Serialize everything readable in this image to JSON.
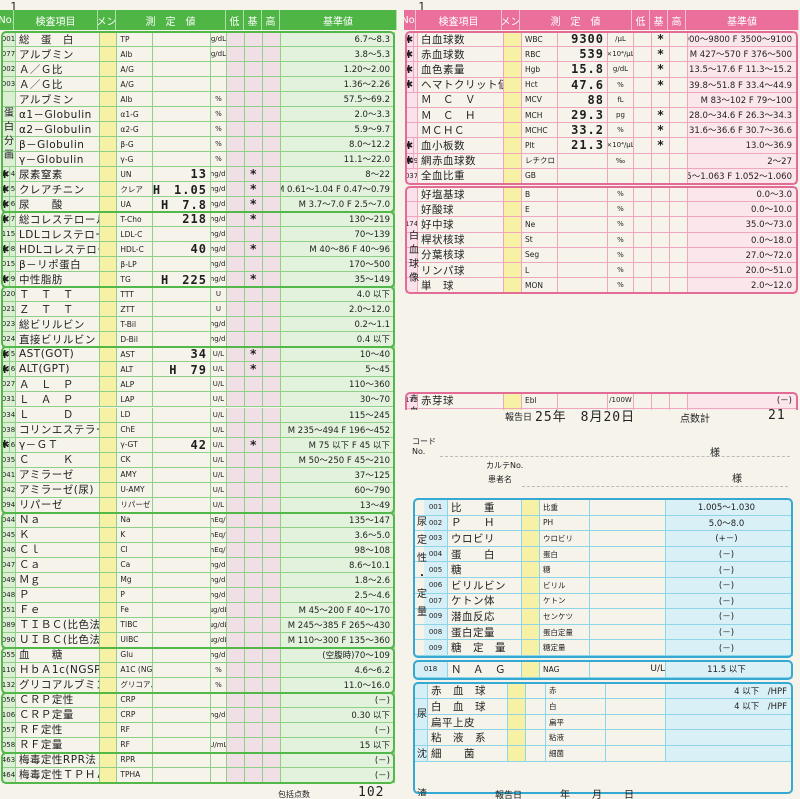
{
  "corner_marks": {
    "left": "1",
    "right": "1"
  },
  "left_form": {
    "header": [
      "No.",
      "検査項目",
      "コメント",
      "測　定　値",
      "低",
      "基",
      "高",
      "基準値"
    ],
    "rows": [
      {
        "no": "001",
        "item": "総　蛋　白",
        "abbr": "TP",
        "val": "",
        "flag": "",
        "unit": "g/dL",
        "ref": "6.7～8.3"
      },
      {
        "no": "077",
        "item": "アルブミン",
        "abbr": "Alb",
        "val": "",
        "flag": "",
        "unit": "g/dL",
        "ref": "3.8～5.3"
      },
      {
        "no": "002",
        "item": "Ａ／Ｇ比",
        "abbr": "A/G",
        "val": "",
        "flag": "",
        "unit": "",
        "ref": "1.20～2.00"
      },
      {
        "no": "003",
        "item": "Ａ／Ｇ比",
        "abbr": "A/G",
        "val": "",
        "flag": "",
        "unit": "",
        "ref": "1.36～2.26"
      },
      {
        "no": "",
        "item": "アルブミン",
        "abbr": "Alb",
        "val": "",
        "flag": "",
        "unit": "%",
        "ref": "57.5～69.2"
      },
      {
        "no": "",
        "item": "α1－Globulin",
        "abbr": "α1-G",
        "val": "",
        "flag": "",
        "unit": "%",
        "ref": "2.0～3.3"
      },
      {
        "no": "",
        "item": "α2－Globulin",
        "abbr": "α2-G",
        "val": "",
        "flag": "",
        "unit": "%",
        "ref": "5.9～9.7"
      },
      {
        "no": "",
        "item": "β－Globulin",
        "abbr": "β-G",
        "val": "",
        "flag": "",
        "unit": "%",
        "ref": "8.0～12.2"
      },
      {
        "no": "",
        "item": "γ－Globulin",
        "abbr": "γ-G",
        "val": "",
        "flag": "",
        "unit": "%",
        "ref": "11.1～22.0"
      },
      {
        "no": "004",
        "item": "尿素窒素",
        "abbr": "UN",
        "val": "13",
        "flag": "*",
        "unit": "mg/dL",
        "ref": "8～22",
        "star": "✱"
      },
      {
        "no": "005",
        "item": "クレアチニン",
        "abbr": "クレア",
        "val": "H　1.05",
        "flag": "*",
        "unit": "mg/dL",
        "ref": "M 0.61～1.04 F 0.47～0.79",
        "star": "✱"
      },
      {
        "no": "006",
        "item": "尿　　酸",
        "abbr": "UA",
        "val": "H　7.8",
        "flag": "*",
        "unit": "mg/dL",
        "ref": "M 3.7～7.0 F 2.5～7.0",
        "star": "✱"
      },
      {
        "no": "007",
        "item": "総コレステロール",
        "abbr": "T-Cho",
        "val": "218",
        "flag": "*",
        "unit": "mg/dL",
        "ref": "130～219",
        "star": "✱"
      },
      {
        "no": "115",
        "item": "LDLコレステロール",
        "abbr": "LDL-C",
        "val": "",
        "flag": "",
        "unit": "mg/dL",
        "ref": "70～139"
      },
      {
        "no": "008",
        "item": "HDLコレステロール",
        "abbr": "HDL-C",
        "val": "40",
        "flag": "*",
        "unit": "mg/dL",
        "ref": "M 40～86 F 40～96",
        "star": "✱"
      },
      {
        "no": "015",
        "item": "β－リポ蛋白",
        "abbr": "β-LP",
        "val": "",
        "flag": "",
        "unit": "mg/dL",
        "ref": "170～500"
      },
      {
        "no": "009",
        "item": "中性脂肪",
        "abbr": "TG",
        "val": "H　225",
        "flag": "*",
        "unit": "mg/dL",
        "ref": "35～149",
        "star": "✱"
      },
      {
        "no": "020",
        "item": "Ｔ　Ｔ　Ｔ",
        "abbr": "TTT",
        "val": "",
        "flag": "",
        "unit": "U",
        "ref": "4.0 以下"
      },
      {
        "no": "021",
        "item": "Ｚ　Ｔ　Ｔ",
        "abbr": "ZTT",
        "val": "",
        "flag": "",
        "unit": "U",
        "ref": "2.0～12.0"
      },
      {
        "no": "023",
        "item": "総ビリルビン",
        "abbr": "T-Bil",
        "val": "",
        "flag": "",
        "unit": "mg/dL",
        "ref": "0.2～1.1"
      },
      {
        "no": "024",
        "item": "直接ビリルビン",
        "abbr": "D-Bil",
        "val": "",
        "flag": "",
        "unit": "mg/dL",
        "ref": "0.4 以下"
      },
      {
        "no": "025",
        "item": "AST(GOT)",
        "abbr": "AST",
        "val": "34",
        "flag": "*",
        "unit": "U/L",
        "ref": "10～40",
        "star": "✱"
      },
      {
        "no": "026",
        "item": "ALT(GPT)",
        "abbr": "ALT",
        "val": "H　79",
        "flag": "*",
        "unit": "U/L",
        "ref": "5～45",
        "star": "✱"
      },
      {
        "no": "027",
        "item": "Ａ　Ｌ　Ｐ",
        "abbr": "ALP",
        "val": "",
        "flag": "",
        "unit": "U/L",
        "ref": "110～360"
      },
      {
        "no": "031",
        "item": "Ｌ　Ａ　Ｐ",
        "abbr": "LAP",
        "val": "",
        "flag": "",
        "unit": "U/L",
        "ref": "30～70"
      },
      {
        "no": "034",
        "item": "Ｌ　　　Ｄ",
        "abbr": "LD",
        "val": "",
        "flag": "",
        "unit": "U/L",
        "ref": "115～245"
      },
      {
        "no": "038",
        "item": "コリンエステラーゼ",
        "abbr": "ChE",
        "val": "",
        "flag": "",
        "unit": "U/L",
        "ref": "M 235～494 F 196～452"
      },
      {
        "no": "036",
        "item": "γ－ＧＴ",
        "abbr": "γ-GT",
        "val": "42",
        "flag": "*",
        "unit": "U/L",
        "ref": "M 75 以下 F 45 以下",
        "star": "✱"
      },
      {
        "no": "035",
        "item": "Ｃ　　　Ｋ",
        "abbr": "CK",
        "val": "",
        "flag": "",
        "unit": "U/L",
        "ref": "M 50～250 F 45～210"
      },
      {
        "no": "041",
        "item": "アミラーゼ",
        "abbr": "AMY",
        "val": "",
        "flag": "",
        "unit": "U/L",
        "ref": "37～125"
      },
      {
        "no": "042",
        "item": "アミラーゼ(尿)",
        "abbr": "U-AMY",
        "val": "",
        "flag": "",
        "unit": "U/L",
        "ref": "60～790"
      },
      {
        "no": "094",
        "item": "リパーゼ",
        "abbr": "リパーゼ",
        "val": "",
        "flag": "",
        "unit": "U/L",
        "ref": "13～49"
      },
      {
        "no": "044",
        "item": "Ｎａ",
        "abbr": "Na",
        "val": "",
        "flag": "",
        "unit": "mEq/L",
        "ref": "135～147"
      },
      {
        "no": "045",
        "item": "Ｋ",
        "abbr": "K",
        "val": "",
        "flag": "",
        "unit": "mEq/L",
        "ref": "3.6～5.0"
      },
      {
        "no": "046",
        "item": "Ｃｌ",
        "abbr": "Cl",
        "val": "",
        "flag": "",
        "unit": "mEq/L",
        "ref": "98～108"
      },
      {
        "no": "047",
        "item": "Ｃａ",
        "abbr": "Ca",
        "val": "",
        "flag": "",
        "unit": "mg/dL",
        "ref": "8.6～10.1"
      },
      {
        "no": "049",
        "item": "Ｍｇ",
        "abbr": "Mg",
        "val": "",
        "flag": "",
        "unit": "mg/dL",
        "ref": "1.8～2.6"
      },
      {
        "no": "048",
        "item": "Ｐ",
        "abbr": "P",
        "val": "",
        "flag": "",
        "unit": "mg/dL",
        "ref": "2.5～4.6"
      },
      {
        "no": "051",
        "item": "Ｆｅ",
        "abbr": "Fe",
        "val": "",
        "flag": "",
        "unit": "μg/dL",
        "ref": "M 45～200 F 40～170"
      },
      {
        "no": "089",
        "item": "ＴＩＢＣ(比色法)",
        "abbr": "TIBC",
        "val": "",
        "flag": "",
        "unit": "μg/dL",
        "ref": "M 245～385 F 265～430"
      },
      {
        "no": "090",
        "item": "ＵＩＢＣ(比色法)",
        "abbr": "UIBC",
        "val": "",
        "flag": "",
        "unit": "μg/dL",
        "ref": "M 110～300 F 135～360"
      },
      {
        "no": "055",
        "item": "血　　糖",
        "abbr": "Glu",
        "val": "",
        "flag": "",
        "unit": "mg/dL",
        "ref": "(空腹時)70～109"
      },
      {
        "no": "110",
        "item": "ＨｂＡ1c(NGSP)",
        "abbr": "A1C (NGSP)",
        "val": "",
        "flag": "",
        "unit": "%",
        "ref": "4.6～6.2"
      },
      {
        "no": "132",
        "item": "グリコアルブミン",
        "abbr": "グリコアルブミン",
        "val": "",
        "flag": "",
        "unit": "%",
        "ref": "11.0～16.0"
      },
      {
        "no": "056",
        "item": "ＣＲＰ定性",
        "abbr": "CRP",
        "val": "",
        "flag": "",
        "unit": "",
        "ref": "(－)"
      },
      {
        "no": "106",
        "item": "ＣＲＰ定量",
        "abbr": "CRP",
        "val": "",
        "flag": "",
        "unit": "mg/dL",
        "ref": "0.30 以下"
      },
      {
        "no": "057",
        "item": "ＲＦ定性",
        "abbr": "RF",
        "val": "",
        "flag": "",
        "unit": "",
        "ref": "(－)"
      },
      {
        "no": "058",
        "item": "ＲＦ定量",
        "abbr": "RF",
        "val": "",
        "flag": "",
        "unit": "U/mL",
        "ref": "15 以下"
      },
      {
        "no": "463",
        "item": "梅毒定性RPR法",
        "abbr": "RPR",
        "val": "",
        "flag": "",
        "unit": "",
        "ref": "(－)"
      },
      {
        "no": "464",
        "item": "梅毒定性ＴＰＨＡ",
        "abbr": "TPHA",
        "val": "",
        "flag": "",
        "unit": "",
        "ref": "(－)"
      }
    ],
    "side_text": [
      "蛋",
      "白",
      "分",
      "画"
    ],
    "footer": {
      "label": "包括点数",
      "value": "102"
    }
  },
  "right_form": {
    "header": [
      "No.",
      "検査項目",
      "コメント",
      "測　定　値",
      "低",
      "基",
      "高",
      "基準値"
    ],
    "rows": [
      {
        "no": "",
        "item": "白血球数",
        "abbr": "WBC",
        "val": "9300",
        "unit": "/μL",
        "flag": "*",
        "ref": "M 3900～9800 F 3500～9100",
        "star": "✱"
      },
      {
        "no": "",
        "item": "赤血球数",
        "abbr": "RBC",
        "val": "539",
        "unit": "×10⁴/μL",
        "flag": "*",
        "ref": "M 427～570 F 376～500",
        "star": "✱"
      },
      {
        "no": "",
        "item": "血色素量",
        "abbr": "Hgb",
        "val": "15.8",
        "unit": "g/dL",
        "flag": "*",
        "ref": "M 13.5～17.6 F 11.3～15.2",
        "star": "✱"
      },
      {
        "no": "",
        "item": "ヘマトクリット値",
        "abbr": "Hct",
        "val": "47.6",
        "unit": "%",
        "flag": "*",
        "ref": "M 39.8～51.8 F 33.4～44.9",
        "star": "✱"
      },
      {
        "no": "",
        "item": "Ｍ　Ｃ　Ｖ",
        "abbr": "MCV",
        "val": "88",
        "unit": "fL",
        "flag": "",
        "ref": "M 83～102 F 79～100"
      },
      {
        "no": "",
        "item": "Ｍ　Ｃ　Ｈ",
        "abbr": "MCH",
        "val": "29.3",
        "unit": "pg",
        "flag": "*",
        "ref": "M 28.0～34.6 F 26.3～34.3"
      },
      {
        "no": "",
        "item": "ＭＣＨＣ",
        "abbr": "MCHC",
        "val": "33.2",
        "unit": "%",
        "flag": "*",
        "ref": "M 31.6～36.6 F 30.7～36.6"
      },
      {
        "no": "",
        "item": "血小板数",
        "abbr": "Plt",
        "val": "21.3",
        "unit": "×10⁴/μL",
        "flag": "*",
        "ref": "13.0～36.9",
        "star": "✱"
      },
      {
        "no": "009",
        "item": "網赤血球数",
        "abbr": "レチクロ",
        "val": "",
        "unit": "‰",
        "flag": "",
        "ref": "2～27",
        "star": "✱"
      },
      {
        "no": "037",
        "item": "全血比重",
        "abbr": "GB",
        "val": "",
        "unit": "",
        "flag": "",
        "ref": "M 1.055～1.063 F 1.052～1.060"
      },
      {
        "no": "",
        "item": "好塩基球",
        "abbr": "B",
        "val": "",
        "unit": "%",
        "flag": "",
        "ref": "0.0～3.0"
      },
      {
        "no": "",
        "item": "好酸球",
        "abbr": "E",
        "val": "",
        "unit": "%",
        "flag": "",
        "ref": "0.0～10.0"
      },
      {
        "no": "174",
        "item": "好中球",
        "abbr": "Ne",
        "val": "",
        "unit": "%",
        "flag": "",
        "ref": "35.0～73.0"
      },
      {
        "no": "",
        "item": "桿状核球",
        "abbr": "St",
        "val": "",
        "unit": "%",
        "flag": "",
        "ref": "0.0～18.0"
      },
      {
        "no": "",
        "item": "分葉核球",
        "abbr": "Seg",
        "val": "",
        "unit": "%",
        "flag": "",
        "ref": "27.0～72.0"
      },
      {
        "no": "",
        "item": "リンパ球",
        "abbr": "L",
        "val": "",
        "unit": "%",
        "flag": "",
        "ref": "20.0～51.0"
      },
      {
        "no": "",
        "item": "単　球",
        "abbr": "MON",
        "val": "",
        "unit": "%",
        "flag": "",
        "ref": "2.0～12.0"
      },
      {
        "no": "175",
        "item": "赤芽球",
        "abbr": "Ebl",
        "val": "",
        "unit": "/100W",
        "flag": "",
        "ref": "(－)"
      },
      {
        "no": "176",
        "item": "大小不同",
        "abbr": "大小",
        "val": "",
        "unit": "",
        "flag": "",
        "ref": "(－)"
      },
      {
        "no": "",
        "item": "多染性",
        "abbr": "多染",
        "val": "",
        "unit": "",
        "flag": "",
        "ref": "(－)"
      },
      {
        "no": "",
        "item": "奇　形",
        "abbr": "奇形",
        "val": "",
        "unit": "",
        "flag": "",
        "ref": "(－)"
      }
    ],
    "side_text": [
      "白",
      "血",
      "球",
      "像"
    ],
    "side_text2": [
      "赤",
      "血",
      "球",
      "像"
    ],
    "report_date": {
      "label": "報告日",
      "value": "25年　8月20日",
      "points_label": "点数計",
      "points": "21"
    }
  },
  "patient": {
    "code_label": "コード No.",
    "chart_label": "カルテNo.",
    "name_label": "患者名",
    "sama1": "様",
    "sama2": "様"
  },
  "urine_form": {
    "rows": [
      {
        "no": "001",
        "item": "比　　重",
        "abbr": "比重",
        "ref": "1.005～1.030"
      },
      {
        "no": "002",
        "item": "Ｐ　　Ｈ",
        "abbr": "PH",
        "ref": "5.0～8.0"
      },
      {
        "no": "003",
        "item": "ウロビリ",
        "abbr": "ウロビリ",
        "ref": "(+－)"
      },
      {
        "no": "004",
        "item": "蛋　　白",
        "abbr": "蛋白",
        "ref": "(－)"
      },
      {
        "no": "005",
        "item": "糖",
        "abbr": "糖",
        "ref": "(－)"
      },
      {
        "no": "006",
        "item": "ビリルビン",
        "abbr": "ビリル",
        "ref": "(－)"
      },
      {
        "no": "007",
        "item": "ケトン体",
        "abbr": "ケトン",
        "ref": "(－)"
      },
      {
        "no": "009",
        "item": "潜血反応",
        "abbr": "センケツ",
        "ref": "(－)"
      },
      {
        "no": "008",
        "item": "蛋白定量",
        "abbr": "蛋白定量",
        "ref": "(－)"
      },
      {
        "no": "009",
        "item": "糖　定　量",
        "abbr": "糖定量",
        "ref": "(－)"
      }
    ],
    "side_text": [
      "尿",
      "定",
      "性",
      "・",
      "定",
      "量"
    ],
    "nag": {
      "no": "018",
      "item": "Ｎ　Ａ　Ｇ",
      "abbr": "NAG",
      "unit": "U/L",
      "ref": "11.5 以下"
    },
    "sediment": [
      {
        "item": "赤　血　球",
        "abbr": "赤",
        "ref": "4 以下　/HPF"
      },
      {
        "item": "白　血　球",
        "abbr": "白",
        "ref": "4 以下　/HPF"
      },
      {
        "item": "扁平上皮",
        "abbr": "扁平",
        "ref": ""
      },
      {
        "item": "粘　液　系",
        "abbr": "粘液",
        "ref": ""
      },
      {
        "item": "細　　菌",
        "abbr": "細菌",
        "ref": ""
      }
    ],
    "sediment_side": [
      "尿",
      "沈",
      "渣"
    ],
    "footer": {
      "label": "報告日",
      "year": "年",
      "month": "月",
      "day": "日"
    }
  },
  "colors": {
    "green": "#4fb545",
    "pink": "#ea709b",
    "blue": "#36a9d3"
  }
}
